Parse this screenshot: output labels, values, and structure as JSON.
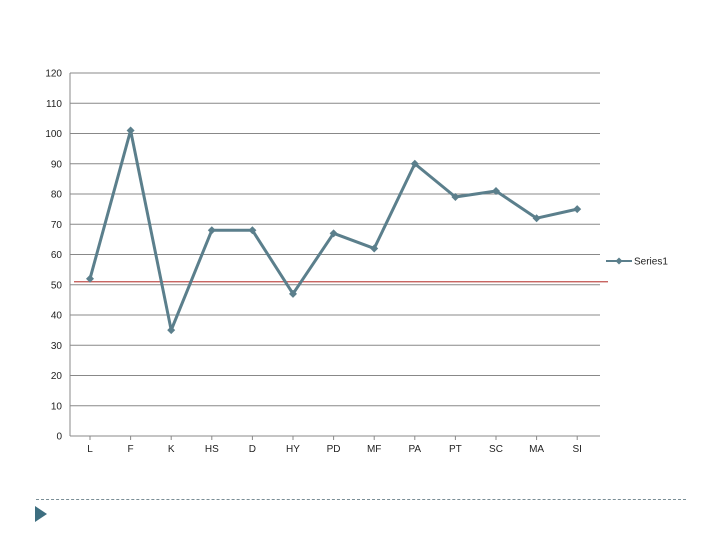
{
  "chart_data": {
    "type": "line",
    "categories": [
      "L",
      "F",
      "K",
      "HS",
      "D",
      "HY",
      "PD",
      "MF",
      "PA",
      "PT",
      "SC",
      "MA",
      "SI"
    ],
    "series": [
      {
        "name": "Series1",
        "values": [
          52,
          101,
          35,
          68,
          68,
          47,
          67,
          62,
          90,
          79,
          81,
          72,
          75
        ],
        "color": "#5b7f8c",
        "marker": "diamond"
      }
    ],
    "reference_line": {
      "y": 51,
      "color": "#c0504d"
    },
    "ylim": [
      0,
      120
    ],
    "yticks": [
      0,
      10,
      20,
      30,
      40,
      50,
      60,
      70,
      80,
      90,
      100,
      110,
      120
    ],
    "grid": true,
    "legend_position": "right",
    "title": "",
    "xlabel": "",
    "ylabel": ""
  },
  "colors": {
    "grid": "#888888",
    "axis": "#888888",
    "series": "#5b7f8c",
    "reference": "#c0504d",
    "accent": "#3d6e80"
  },
  "footer": {
    "nav_icon": "play-arrow-icon"
  }
}
